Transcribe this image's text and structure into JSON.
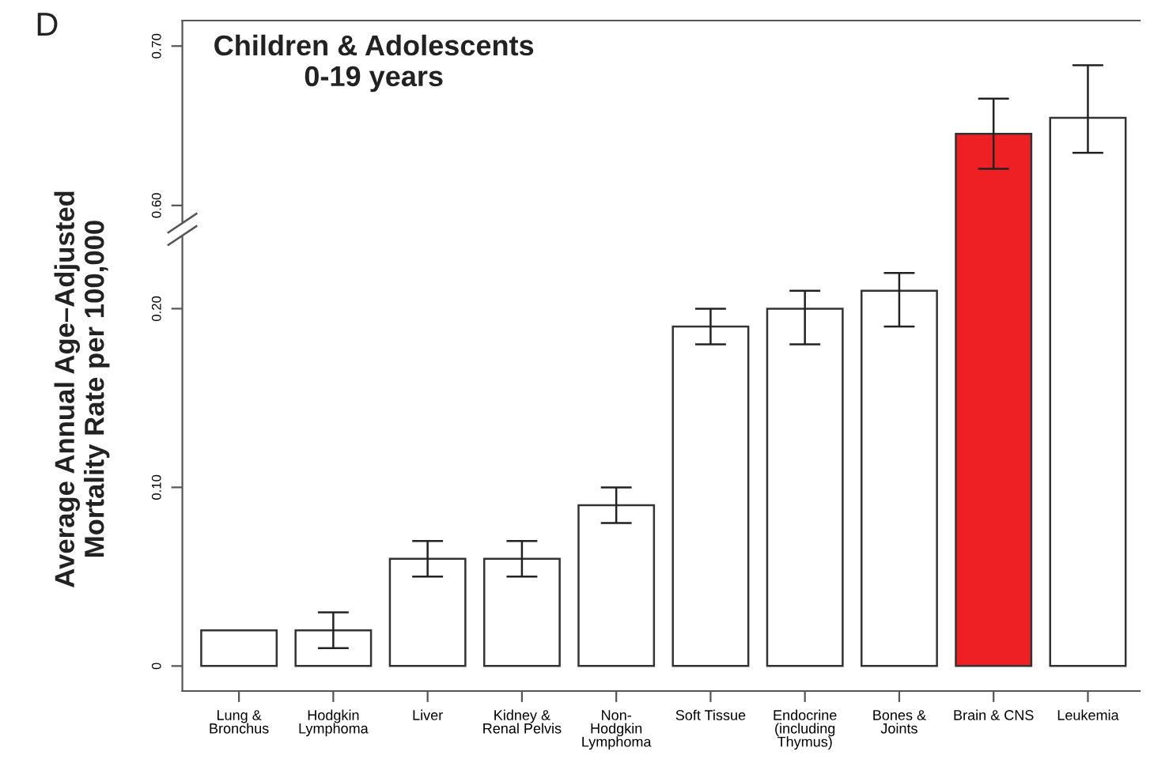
{
  "chart_data": [
    {
      "type": "bar",
      "title": "Children & Adolescents\n0-19 years",
      "ylabel": "Average Annual Age–Adjusted\nMortality Rate per 100,000",
      "annotations": [
        "D"
      ],
      "categories": [
        null,
        null,
        null,
        null,
        null,
        null,
        null,
        null,
        null,
        null
      ],
      "values": [
        null,
        null,
        null,
        null,
        null,
        null,
        null,
        null,
        0.645,
        0.655
      ],
      "errors": [
        null,
        null,
        null,
        null,
        null,
        null,
        null,
        null,
        [
          0.623,
          0.667
        ],
        [
          0.633,
          0.688
        ]
      ],
      "colors": [
        "#ffffff",
        "#ffffff",
        "#ffffff",
        "#ffffff",
        "#ffffff",
        "#ffffff",
        "#ffffff",
        "#ffffff",
        "#ee2024",
        "#ffffff"
      ],
      "ylim": [
        0.59,
        0.716
      ],
      "yticks": [
        {
          "value": 0.6,
          "label": "0.60"
        },
        {
          "value": 0.7,
          "label": "0.70"
        }
      ],
      "tick_labels": "y",
      "grid": false,
      "legend": false
    },
    {
      "type": "bar",
      "categories": [
        "Lung &\nBronchus",
        "Hodgkin\nLymphoma",
        "Liver",
        "Kidney &\nRenal Pelvis",
        "Non-\nHodgkin\nLymphoma",
        "Soft Tissue",
        "Endocrine\n(including\nThymus)",
        "Bones &\nJoints",
        "Brain & CNS",
        "Leukemia"
      ],
      "values": [
        0.02,
        0.02,
        0.06,
        0.06,
        0.09,
        0.19,
        0.2,
        0.21,
        null,
        null
      ],
      "errors": [
        null,
        [
          0.01,
          0.03
        ],
        [
          0.05,
          0.07
        ],
        [
          0.05,
          0.07
        ],
        [
          0.08,
          0.1
        ],
        [
          0.18,
          0.2
        ],
        [
          0.18,
          0.21
        ],
        [
          0.19,
          0.22
        ],
        null,
        null
      ],
      "colors": [
        "#ffffff",
        "#ffffff",
        "#ffffff",
        "#ffffff",
        "#ffffff",
        "#ffffff",
        "#ffffff",
        "#ffffff",
        "#ee2024",
        "#ffffff"
      ],
      "ylim": [
        -0.014,
        0.24
      ],
      "yticks": [
        0,
        {
          "value": 0.1,
          "label": "0.10"
        },
        {
          "value": 0.2,
          "label": "0.20"
        }
      ],
      "grid": false,
      "legend": false
    }
  ]
}
